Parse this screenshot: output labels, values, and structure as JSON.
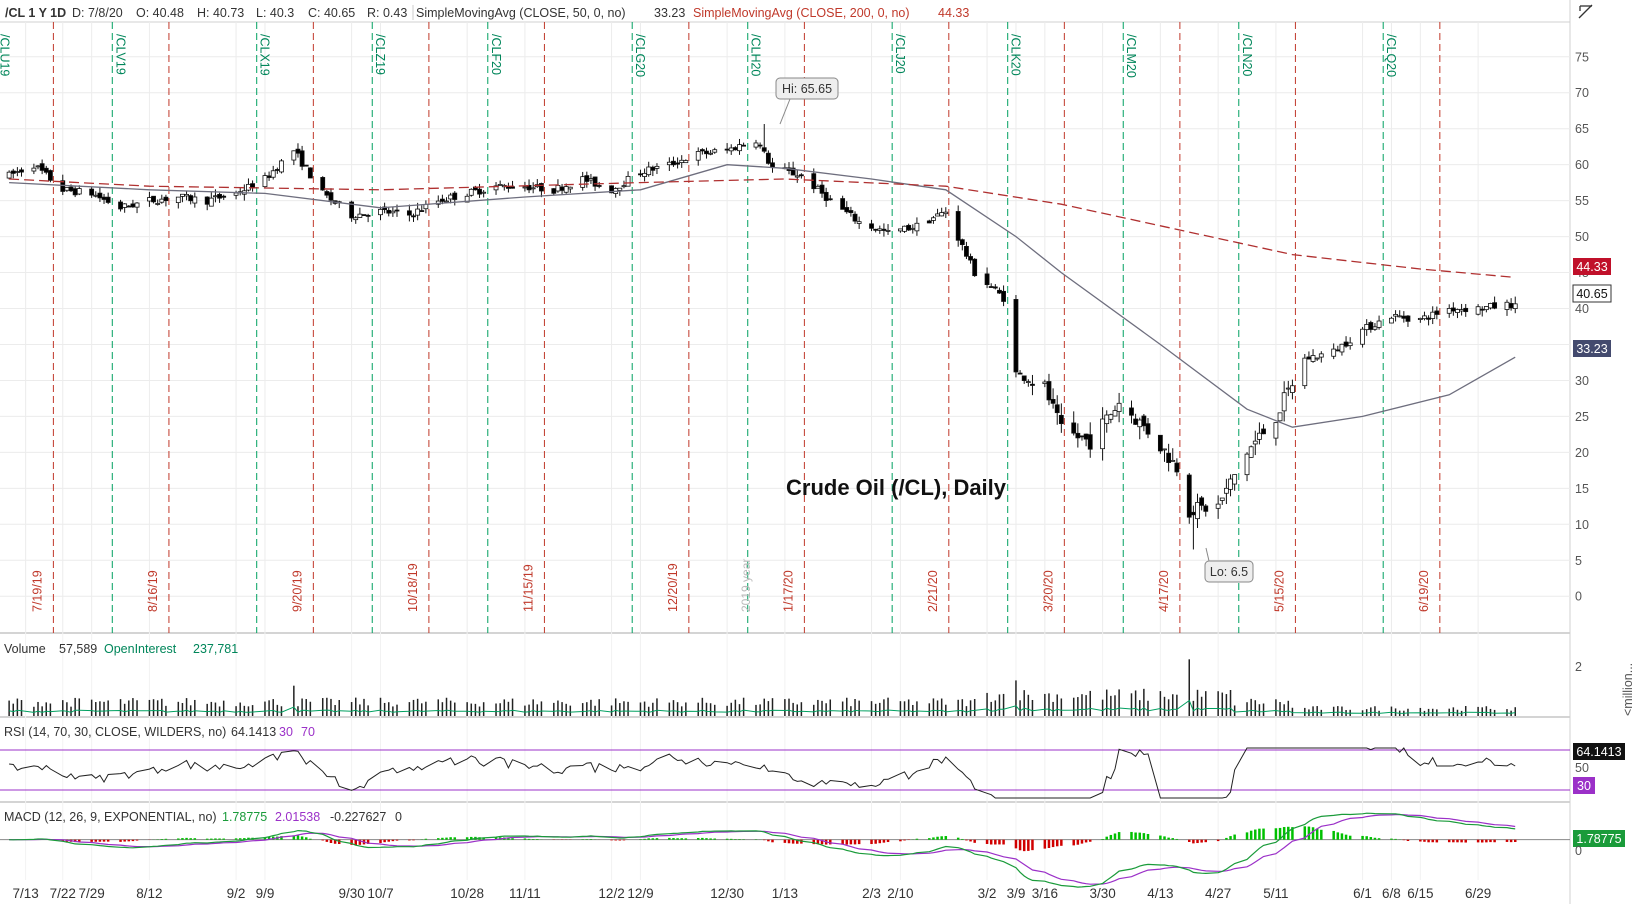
{
  "header": {
    "symbol": "/CL 1 Y 1D",
    "date": "D: 7/8/20",
    "open": "O: 40.48",
    "high": "H: 40.73",
    "low": "L: 40.3",
    "close": "C: 40.65",
    "range": "R: 0.43",
    "sma50_label": "SimpleMovingAvg (CLOSE, 50, 0, no)",
    "sma50_value": "33.23",
    "sma200_label": "SimpleMovingAvg (CLOSE, 200, 0, no)",
    "sma200_value": "44.33"
  },
  "annotations": {
    "title": "Crude Oil (/CL), Daily",
    "hi_label": "Hi: 65.65",
    "lo_label": "Lo: 6.5",
    "year_label": "2019 year"
  },
  "price_badges": {
    "sma200": "44.33",
    "last": "40.65",
    "sma50": "33.23"
  },
  "volume_header": {
    "label": "Volume",
    "value": "57,589",
    "oi_label": "OpenInterest",
    "oi_value": "237,781"
  },
  "volume_axis": {
    "ticks": [
      "2"
    ],
    "unit": "<million..."
  },
  "rsi_header": {
    "label": "RSI (14, 70, 30, CLOSE, WILDERS, no)",
    "value": "64.1413",
    "low": "30",
    "high": "70"
  },
  "rsi_badges": {
    "value": "64.1413",
    "low": "30"
  },
  "rsi_axis": {
    "ticks": [
      "50"
    ]
  },
  "macd_header": {
    "label": "MACD (12, 26, 9, EXPONENTIAL, no)",
    "value": "1.78775",
    "avg": "2.01538",
    "diff": "-0.227627",
    "zero": "0"
  },
  "macd_badge": "1.78775",
  "macd_axis": {
    "ticks": [
      "0"
    ]
  },
  "colors": {
    "up": "#ffffff",
    "down": "#000000",
    "sma50": "#6e6e7e",
    "sma200": "#b03030",
    "expiry": "#00a060",
    "rollover": "#c0392b",
    "volume": "#222222",
    "volume_avg": "#00a060",
    "rsi": "#222222",
    "rsi_low": "#00a060",
    "macd": "#1a9b3a",
    "macd_avg": "#9b30c8",
    "hist_up": "#00c000",
    "hist_down": "#d00000",
    "badge_sma200": "#c0102a",
    "badge_sma50": "#434a6e"
  },
  "chart_data": {
    "type": "candlestick",
    "title": "Crude Oil (/CL), Daily",
    "y_axis_ticks": [
      75,
      70,
      65,
      60,
      55,
      50,
      45,
      40,
      35,
      30,
      25,
      20,
      15,
      10,
      5,
      0
    ],
    "ylim": [
      -4,
      79
    ],
    "x_axis_ticks": [
      "7/22",
      "7/29",
      "8/12",
      "9/2",
      "9/9",
      "9/30",
      "10/7",
      "10/28",
      "11/11",
      "12/2",
      "12/9",
      "12/30",
      "1/13",
      "2/3",
      "2/10",
      "3/2",
      "3/9",
      "3/16",
      "3/30",
      "4/13",
      "4/27",
      "5/11",
      "6/1",
      "6/8",
      "6/15",
      "6/29",
      "7/13"
    ],
    "contract_expirations": [
      {
        "symbol": "/CLU19",
        "rollover": "7/19/19"
      },
      {
        "symbol": "/CLV19",
        "rollover": "8/16/19"
      },
      {
        "symbol": "/CLX19",
        "rollover": "9/20/19"
      },
      {
        "symbol": "/CLZ19",
        "rollover": "10/18/19"
      },
      {
        "symbol": "/CLF20",
        "rollover": "11/15/19"
      },
      {
        "symbol": "/CLG20",
        "rollover": "12/20/19"
      },
      {
        "symbol": "/CLH20",
        "rollover": "1/17/20"
      },
      {
        "symbol": "/CLJ20",
        "rollover": "2/21/20"
      },
      {
        "symbol": "/CLK20",
        "rollover": "3/20/20"
      },
      {
        "symbol": "/CLM20",
        "rollover": "4/17/20"
      },
      {
        "symbol": "/CLN20",
        "rollover": "5/15/20"
      },
      {
        "symbol": "/CLQ20",
        "rollover": "6/19/20"
      }
    ],
    "price_path": [
      [
        "7/9/19",
        58.5
      ],
      [
        "7/15/19",
        60
      ],
      [
        "7/22/19",
        56.5
      ],
      [
        "7/29/19",
        56
      ],
      [
        "8/5/19",
        54
      ],
      [
        "8/12/19",
        55
      ],
      [
        "8/19/19",
        55.5
      ],
      [
        "8/26/19",
        55
      ],
      [
        "9/2/19",
        56
      ],
      [
        "9/9/19",
        58
      ],
      [
        "9/16/19",
        62
      ],
      [
        "9/23/19",
        56
      ],
      [
        "9/30/19",
        53
      ],
      [
        "10/7/19",
        53.5
      ],
      [
        "10/14/19",
        53
      ],
      [
        "10/21/19",
        55
      ],
      [
        "10/28/19",
        56
      ],
      [
        "11/4/19",
        57
      ],
      [
        "11/11/19",
        57
      ],
      [
        "11/18/19",
        56.5
      ],
      [
        "11/25/19",
        58
      ],
      [
        "12/2/19",
        56.5
      ],
      [
        "12/9/19",
        59
      ],
      [
        "12/16/19",
        60
      ],
      [
        "12/23/19",
        61.5
      ],
      [
        "12/30/19",
        62
      ],
      [
        "1/6/20",
        63.5
      ],
      [
        "1/10/20",
        59.5
      ],
      [
        "1/17/20",
        58.5
      ],
      [
        "1/24/20",
        55
      ],
      [
        "1/31/20",
        52
      ],
      [
        "2/7/20",
        50.5
      ],
      [
        "2/14/20",
        51.5
      ],
      [
        "2/21/20",
        53.5
      ],
      [
        "2/28/20",
        45
      ],
      [
        "3/6/20",
        41.5
      ],
      [
        "3/9/20",
        31
      ],
      [
        "3/16/20",
        29
      ],
      [
        "3/20/20",
        23
      ],
      [
        "3/27/20",
        21.5
      ],
      [
        "4/3/20",
        27
      ],
      [
        "4/10/20",
        23
      ],
      [
        "4/17/20",
        18
      ],
      [
        "4/20/20",
        12
      ],
      [
        "4/27/20",
        12.5
      ],
      [
        "5/4/20",
        20
      ],
      [
        "5/11/20",
        25
      ],
      [
        "5/18/20",
        33
      ],
      [
        "5/25/20",
        34
      ],
      [
        "6/1/20",
        37
      ],
      [
        "6/8/20",
        39
      ],
      [
        "6/15/20",
        38.5
      ],
      [
        "6/22/20",
        40
      ],
      [
        "6/29/20",
        40
      ],
      [
        "7/8/20",
        40.65
      ]
    ],
    "sma50": [
      [
        "7/9/19",
        57.5
      ],
      [
        "8/12/19",
        56.5
      ],
      [
        "9/9/19",
        56
      ],
      [
        "10/7/19",
        54
      ],
      [
        "11/11/19",
        55.5
      ],
      [
        "12/9/19",
        56.5
      ],
      [
        "12/30/19",
        60
      ],
      [
        "1/13/20",
        59.5
      ],
      [
        "2/3/20",
        58
      ],
      [
        "2/21/20",
        56.5
      ],
      [
        "3/9/20",
        50
      ],
      [
        "3/20/20",
        45
      ],
      [
        "4/13/20",
        35
      ],
      [
        "5/4/20",
        26
      ],
      [
        "5/15/20",
        23.5
      ],
      [
        "6/1/20",
        25
      ],
      [
        "6/22/20",
        28
      ],
      [
        "7/8/20",
        33.23
      ]
    ],
    "sma200": [
      [
        "7/9/19",
        58
      ],
      [
        "8/12/19",
        57
      ],
      [
        "10/7/19",
        56.5
      ],
      [
        "12/9/19",
        57.5
      ],
      [
        "1/13/20",
        58
      ],
      [
        "2/21/20",
        57
      ],
      [
        "3/20/20",
        54.5
      ],
      [
        "4/17/20",
        51
      ],
      [
        "5/15/20",
        47.5
      ],
      [
        "6/15/20",
        45.5
      ],
      [
        "7/8/20",
        44.33
      ]
    ],
    "high": 65.65,
    "low": 6.5,
    "last": 40.65,
    "volume_ylim": [
      0,
      2.2
    ],
    "rsi_ylim": [
      20,
      82
    ],
    "macd_ylim": [
      -5.2,
      2.6
    ]
  }
}
